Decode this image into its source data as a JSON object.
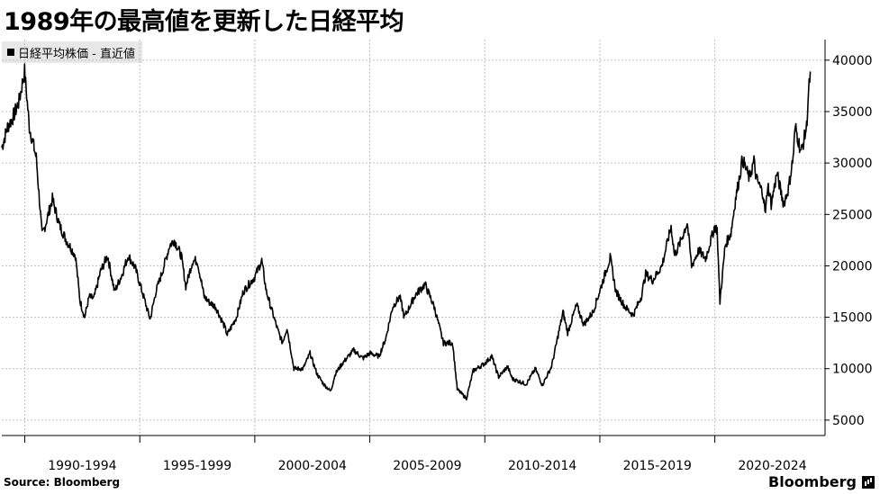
{
  "title": "1989年の最高値を更新した日経平均",
  "legend": {
    "label": "日経平均株価 - 直近値"
  },
  "footer": {
    "source": "Source: Bloomberg",
    "brand": "Bloomberg"
  },
  "colors": {
    "line": "#000000",
    "grid": "#bdbdbd",
    "legend_bg": "#e8e8e8"
  },
  "chart_data": {
    "type": "line",
    "title": "1989年の最高値を更新した日経平均",
    "series": [
      {
        "name": "日経平均株価 - 直近値",
        "points": [
          [
            1989.0,
            31500
          ],
          [
            1989.25,
            33500
          ],
          [
            1989.5,
            34500
          ],
          [
            1989.75,
            36000
          ],
          [
            1989.99,
            38900
          ],
          [
            1990.2,
            33500
          ],
          [
            1990.5,
            30500
          ],
          [
            1990.75,
            23000
          ],
          [
            1990.9,
            24000
          ],
          [
            1991.2,
            26500
          ],
          [
            1991.5,
            24000
          ],
          [
            1991.8,
            22500
          ],
          [
            1992.2,
            21000
          ],
          [
            1992.4,
            16600
          ],
          [
            1992.6,
            15000
          ],
          [
            1992.8,
            17000
          ],
          [
            1993.0,
            16800
          ],
          [
            1993.3,
            19500
          ],
          [
            1993.6,
            21000
          ],
          [
            1993.9,
            17500
          ],
          [
            1994.2,
            19000
          ],
          [
            1994.5,
            21000
          ],
          [
            1994.8,
            19800
          ],
          [
            1995.1,
            17500
          ],
          [
            1995.45,
            14800
          ],
          [
            1995.7,
            17500
          ],
          [
            1995.99,
            19500
          ],
          [
            1996.3,
            22000
          ],
          [
            1996.5,
            22500
          ],
          [
            1996.8,
            21000
          ],
          [
            1997.0,
            18000
          ],
          [
            1997.3,
            20500
          ],
          [
            1997.5,
            20500
          ],
          [
            1997.8,
            17000
          ],
          [
            1998.0,
            16500
          ],
          [
            1998.3,
            16000
          ],
          [
            1998.7,
            14000
          ],
          [
            1998.8,
            13300
          ],
          [
            1999.2,
            15000
          ],
          [
            1999.5,
            17500
          ],
          [
            1999.99,
            18900
          ],
          [
            2000.3,
            20500
          ],
          [
            2000.5,
            17500
          ],
          [
            2000.99,
            13800
          ],
          [
            2001.2,
            12500
          ],
          [
            2001.4,
            14000
          ],
          [
            2001.7,
            10000
          ],
          [
            2002.1,
            10000
          ],
          [
            2002.4,
            11500
          ],
          [
            2002.7,
            9500
          ],
          [
            2002.99,
            8500
          ],
          [
            2003.3,
            7800
          ],
          [
            2003.5,
            9500
          ],
          [
            2003.8,
            10500
          ],
          [
            2004.3,
            11800
          ],
          [
            2004.7,
            11000
          ],
          [
            2005.0,
            11500
          ],
          [
            2005.4,
            11200
          ],
          [
            2005.7,
            13000
          ],
          [
            2005.99,
            16000
          ],
          [
            2006.3,
            17000
          ],
          [
            2006.5,
            15000
          ],
          [
            2006.99,
            17200
          ],
          [
            2007.4,
            18200
          ],
          [
            2007.8,
            16000
          ],
          [
            2008.2,
            12500
          ],
          [
            2008.6,
            12500
          ],
          [
            2008.8,
            8000
          ],
          [
            2009.2,
            7100
          ],
          [
            2009.5,
            9800
          ],
          [
            2009.99,
            10500
          ],
          [
            2010.3,
            11200
          ],
          [
            2010.6,
            9200
          ],
          [
            2010.99,
            10200
          ],
          [
            2011.2,
            9000
          ],
          [
            2011.8,
            8500
          ],
          [
            2012.2,
            10000
          ],
          [
            2012.5,
            8400
          ],
          [
            2012.9,
            10200
          ],
          [
            2013.4,
            15500
          ],
          [
            2013.6,
            13500
          ],
          [
            2013.99,
            16200
          ],
          [
            2014.3,
            14300
          ],
          [
            2014.7,
            15500
          ],
          [
            2014.99,
            17500
          ],
          [
            2015.45,
            20800
          ],
          [
            2015.7,
            17500
          ],
          [
            2016.1,
            16000
          ],
          [
            2016.45,
            15200
          ],
          [
            2016.8,
            17000
          ],
          [
            2016.99,
            19200
          ],
          [
            2017.3,
            18600
          ],
          [
            2017.7,
            20000
          ],
          [
            2017.99,
            22800
          ],
          [
            2018.1,
            23800
          ],
          [
            2018.25,
            21000
          ],
          [
            2018.5,
            22300
          ],
          [
            2018.8,
            24200
          ],
          [
            2018.99,
            20000
          ],
          [
            2019.3,
            21500
          ],
          [
            2019.6,
            20700
          ],
          [
            2019.99,
            23800
          ],
          [
            2020.1,
            23500
          ],
          [
            2020.22,
            16500
          ],
          [
            2020.45,
            22000
          ],
          [
            2020.7,
            23200
          ],
          [
            2020.9,
            26500
          ],
          [
            2021.1,
            29000
          ],
          [
            2021.2,
            30400
          ],
          [
            2021.5,
            28500
          ],
          [
            2021.7,
            30200
          ],
          [
            2021.8,
            28500
          ],
          [
            2022.1,
            27000
          ],
          [
            2022.2,
            25000
          ],
          [
            2022.3,
            28000
          ],
          [
            2022.45,
            26000
          ],
          [
            2022.7,
            29000
          ],
          [
            2022.99,
            26000
          ],
          [
            2023.2,
            27500
          ],
          [
            2023.4,
            30500
          ],
          [
            2023.5,
            33500
          ],
          [
            2023.75,
            31000
          ],
          [
            2023.99,
            33500
          ],
          [
            2024.05,
            36000
          ],
          [
            2024.15,
            38900
          ]
        ]
      }
    ],
    "categories": [
      "1990-1994",
      "1995-1999",
      "2000-2004",
      "2005-2009",
      "2010-2014",
      "2015-2019",
      "2020-2024"
    ],
    "category_ranges": [
      [
        1990,
        1995
      ],
      [
        1995,
        2000
      ],
      [
        2000,
        2005
      ],
      [
        2005,
        2010
      ],
      [
        2010,
        2015
      ],
      [
        2015,
        2020
      ],
      [
        2020,
        2025
      ]
    ],
    "xlim": [
      1989.0,
      2024.4
    ],
    "ylim": [
      3500,
      42000
    ],
    "yticks": [
      5000,
      10000,
      15000,
      20000,
      25000,
      30000,
      35000,
      40000
    ],
    "ytick_labels": [
      "5000",
      "10000",
      "15000",
      "20000",
      "25000",
      "30000",
      "35000",
      "40000"
    ],
    "y_axis_side": "right",
    "grid": true,
    "legend_position": "top-left"
  }
}
